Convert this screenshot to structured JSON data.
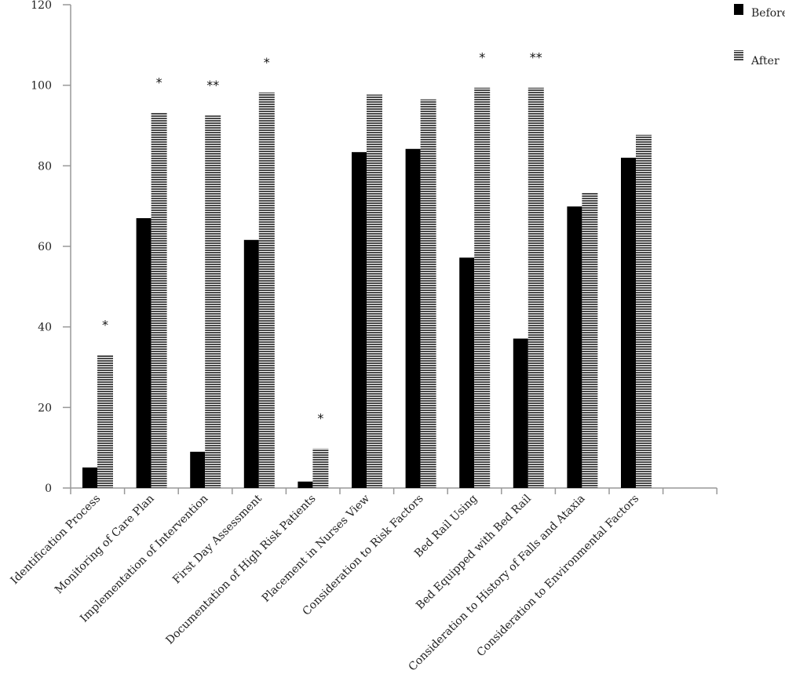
{
  "chart_data": {
    "type": "bar",
    "title": "",
    "xlabel": "",
    "ylabel": "",
    "ylim": [
      0,
      120
    ],
    "yticks": [
      "0",
      "20",
      "40",
      "60",
      "80",
      "100",
      "120"
    ],
    "grid": false,
    "legend_position": "top-right",
    "categories": [
      "Identification Process",
      "Monitoring of Care Plan",
      "Implementation of Intervention",
      "First Day Assessment",
      "Documentation of High Risk Patients",
      "Placement in Nurses View",
      "Consideration to Risk Factors",
      "Bed Rail Using",
      "Bed Equipped with Bed Rail",
      "Consideration to History of Falls and Ataxia",
      "Consideration to Environmental Factors"
    ],
    "series": [
      {
        "name": "Before",
        "color": "#000000",
        "pattern": "solid",
        "values": [
          5.1,
          67,
          9,
          61.6,
          1.6,
          83.4,
          84.2,
          57.2,
          37.1,
          69.9,
          82
        ]
      },
      {
        "name": "After",
        "color": "#555555",
        "pattern": "horizontal-stripes",
        "values": [
          33,
          93.2,
          92.5,
          98.2,
          9.8,
          97.7,
          96.5,
          99.4,
          99.4,
          73.4,
          87.7
        ]
      }
    ],
    "significance": [
      "*",
      "*",
      "**",
      "*",
      "*",
      "",
      "",
      "*",
      "**",
      "",
      ""
    ]
  }
}
